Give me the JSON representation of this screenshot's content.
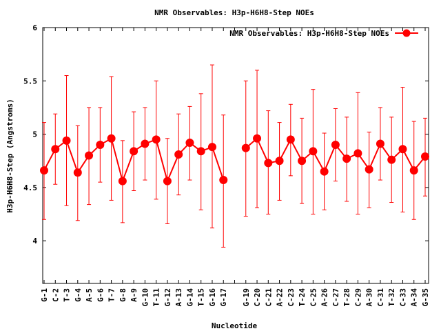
{
  "chart_data": {
    "type": "line",
    "title": "NMR Observables: H3p-H6H8-Step NOEs",
    "xlabel": "Nucleotide",
    "ylabel": "H3p-H6H8-Step (Angstroms)",
    "ylim": [
      3.6,
      6
    ],
    "yticks": [
      "4",
      "4.5",
      "5",
      "5.5",
      "6"
    ],
    "grid": false,
    "legend_position": "top-right",
    "colors": {
      "series": "#ff0000",
      "axis": "#000000",
      "background": "#ffffff"
    },
    "categories": [
      "G-1",
      "C-2",
      "T-3",
      "G-4",
      "A-5",
      "G-6",
      "T-7",
      "G-8",
      "A-9",
      "G-10",
      "T-11",
      "G-12",
      "A-13",
      "G-14",
      "T-15",
      "G-16",
      "G-17",
      "",
      "G-19",
      "C-20",
      "C-21",
      "A-22",
      "C-23",
      "T-24",
      "C-25",
      "A-26",
      "C-27",
      "T-28",
      "C-29",
      "A-30",
      "C-31",
      "T-32",
      "C-33",
      "A-34",
      "G-35"
    ],
    "series": [
      {
        "name": "NMR Observables: H3p-H6H8-Step NOEs",
        "values": [
          4.66,
          4.86,
          4.94,
          4.64,
          4.8,
          4.9,
          4.96,
          4.56,
          4.84,
          4.91,
          4.95,
          4.56,
          4.81,
          4.92,
          4.84,
          4.88,
          4.57,
          null,
          4.87,
          4.96,
          4.73,
          4.75,
          4.95,
          4.75,
          4.84,
          4.65,
          4.9,
          4.77,
          4.82,
          4.67,
          4.91,
          4.76,
          4.86,
          4.66,
          4.79
        ],
        "error_low": [
          4.2,
          4.53,
          4.33,
          4.19,
          4.34,
          4.55,
          4.38,
          4.17,
          4.47,
          4.57,
          4.39,
          4.16,
          4.43,
          4.57,
          4.29,
          4.12,
          3.94,
          null,
          4.23,
          4.31,
          4.25,
          4.38,
          4.61,
          4.35,
          4.25,
          4.29,
          4.56,
          4.37,
          4.25,
          4.31,
          4.57,
          4.36,
          4.27,
          4.2,
          4.42
        ],
        "error_high": [
          5.11,
          5.19,
          5.55,
          5.08,
          5.25,
          5.25,
          5.54,
          4.94,
          5.21,
          5.25,
          5.5,
          4.96,
          5.19,
          5.26,
          5.38,
          5.65,
          5.18,
          null,
          5.5,
          5.6,
          5.22,
          5.11,
          5.28,
          5.15,
          5.42,
          5.01,
          5.24,
          5.16,
          5.39,
          5.02,
          5.25,
          5.16,
          5.44,
          5.12,
          5.15
        ]
      }
    ]
  }
}
